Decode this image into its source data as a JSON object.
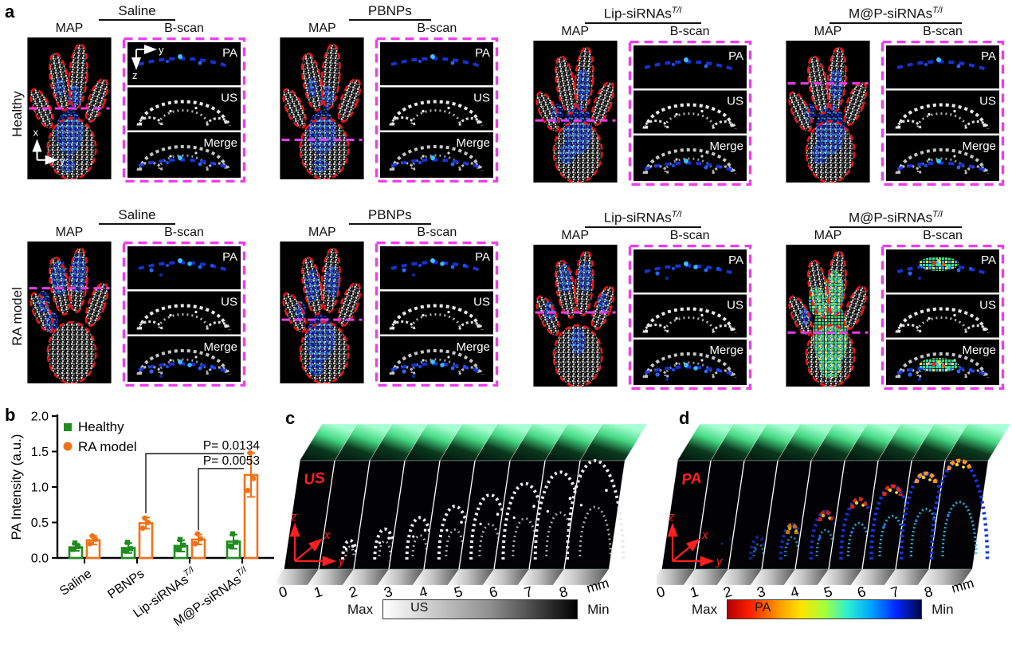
{
  "panel_a": {
    "label": "a",
    "rows": [
      {
        "label": "Healthy"
      },
      {
        "label": "RA model"
      }
    ],
    "treatments": [
      {
        "name": "Saline",
        "sup": ""
      },
      {
        "name": "PBNPs",
        "sup": ""
      },
      {
        "name": "Lip-siRNAs",
        "sup": "T/I"
      },
      {
        "name": "M@P-siRNAs",
        "sup": "T/I"
      }
    ],
    "subheaders": [
      "MAP",
      "B-scan"
    ],
    "bscan_labels": [
      "PA",
      "US",
      "Merge"
    ],
    "map_axis": {
      "v": "x",
      "h": "y"
    },
    "bscan_axis": {
      "h": "y",
      "v": "z"
    }
  },
  "panel_b": {
    "label": "b"
  },
  "chart_data": {
    "type": "bar",
    "title": "",
    "ylabel": "PA Intensity (a.u.)",
    "ylim": [
      0,
      2.0
    ],
    "yticks": [
      0.0,
      0.5,
      1.0,
      1.5,
      2.0
    ],
    "grid": false,
    "legend_position": "top-left",
    "categories": [
      {
        "name": "Saline",
        "sup": ""
      },
      {
        "name": "PBNPs",
        "sup": ""
      },
      {
        "name": "Lip-siRNAs",
        "sup": "T/I"
      },
      {
        "name": "M@P-siRNAs",
        "sup": "T/I"
      }
    ],
    "series": [
      {
        "name": "Healthy",
        "color": "#1f8c1f",
        "marker": "square",
        "values": [
          0.15,
          0.14,
          0.17,
          0.23
        ],
        "errors": [
          0.05,
          0.07,
          0.08,
          0.1
        ],
        "points": [
          [
            0.12,
            0.16,
            0.21
          ],
          [
            0.1,
            0.13,
            0.22
          ],
          [
            0.12,
            0.18,
            0.26
          ],
          [
            0.17,
            0.22,
            0.34
          ]
        ]
      },
      {
        "name": "RA model",
        "color": "#f07218",
        "marker": "circle",
        "values": [
          0.25,
          0.49,
          0.26,
          1.17
        ],
        "errors": [
          0.06,
          0.08,
          0.07,
          0.31
        ],
        "points": [
          [
            0.2,
            0.26,
            0.31
          ],
          [
            0.42,
            0.5,
            0.56
          ],
          [
            0.2,
            0.27,
            0.34
          ],
          [
            0.95,
            1.12,
            1.48
          ]
        ]
      }
    ],
    "annotations": [
      {
        "label": "P= 0.0134",
        "from_cat": 1,
        "to_cat": 3,
        "y": 1.47
      },
      {
        "label": "P= 0.0053",
        "from_cat": 2,
        "to_cat": 3,
        "y": 1.26
      }
    ]
  },
  "panel_c": {
    "label": "c",
    "modality": "US",
    "slice_labels": [
      "0",
      "1",
      "2",
      "3",
      "4",
      "5",
      "6",
      "7",
      "8"
    ],
    "unit": "mm",
    "axis": {
      "z": "z",
      "x": "x",
      "y": "y"
    },
    "colorbar": {
      "left": "Max",
      "title": "US",
      "right": "Min"
    }
  },
  "panel_d": {
    "label": "d",
    "modality": "PA",
    "slice_labels": [
      "0",
      "1",
      "2",
      "3",
      "4",
      "5",
      "6",
      "7",
      "8"
    ],
    "unit": "mm",
    "axis": {
      "z": "z",
      "x": "x",
      "y": "y"
    },
    "colorbar": {
      "left": "Max",
      "title": "PA",
      "right": "Min"
    }
  },
  "colors": {
    "magenta_dash": "#ee3cee",
    "red_outline": "#ff1212",
    "healthy_green": "#1f8c1f",
    "ra_orange": "#f07218",
    "stack_label_red": "#ff2020",
    "pa_blue": "#1536e0"
  }
}
